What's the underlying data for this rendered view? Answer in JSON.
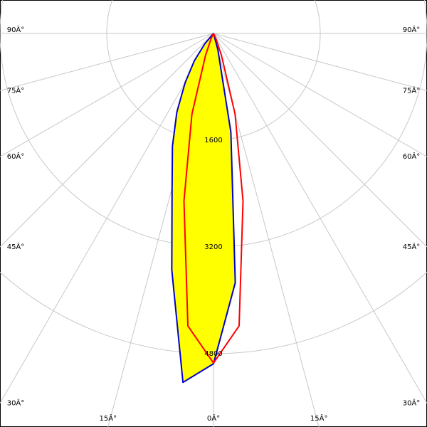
{
  "chart_data": {
    "type": "polar",
    "theta": [
      -90,
      -45,
      -40,
      -35,
      -30,
      -25,
      -20,
      -15,
      -10,
      -5,
      0,
      5,
      10,
      15,
      20,
      25,
      30,
      35,
      40,
      45,
      90
    ],
    "series": [
      {
        "color": "#0000cc",
        "fill": "#ffff00",
        "values": [
          0,
          0,
          200,
          500,
          850,
          1300,
          1800,
          2400,
          3600,
          5250,
          4950,
          3750,
          1500,
          250,
          0,
          0,
          0,
          0,
          0,
          0,
          0
        ]
      },
      {
        "color": "#ff0000",
        "values": [
          0,
          0,
          0,
          0,
          0,
          80,
          350,
          1250,
          2550,
          4400,
          4940,
          4400,
          2550,
          1250,
          350,
          80,
          0,
          0,
          0,
          0,
          0
        ]
      }
    ],
    "rlim": [
      0,
      4800
    ],
    "rticks": [
      1600,
      3200,
      4800
    ],
    "thetaticks": [
      {
        "value": -90,
        "label": "90Â°"
      },
      {
        "value": -75,
        "label": "75Â°"
      },
      {
        "value": -60,
        "label": "60Â°"
      },
      {
        "value": -45,
        "label": "45Â°"
      },
      {
        "value": -30,
        "label": "30Â°"
      },
      {
        "value": -15,
        "label": "15Â°"
      },
      {
        "value": 0,
        "label": "0Â°"
      },
      {
        "value": 15,
        "label": "15Â°"
      },
      {
        "value": 30,
        "label": "30Â°"
      },
      {
        "value": 45,
        "label": "45Â°"
      },
      {
        "value": 60,
        "label": "60Â°"
      },
      {
        "value": 75,
        "label": "75Â°"
      },
      {
        "value": 90,
        "label": "90Â°"
      }
    ],
    "grid": true
  }
}
